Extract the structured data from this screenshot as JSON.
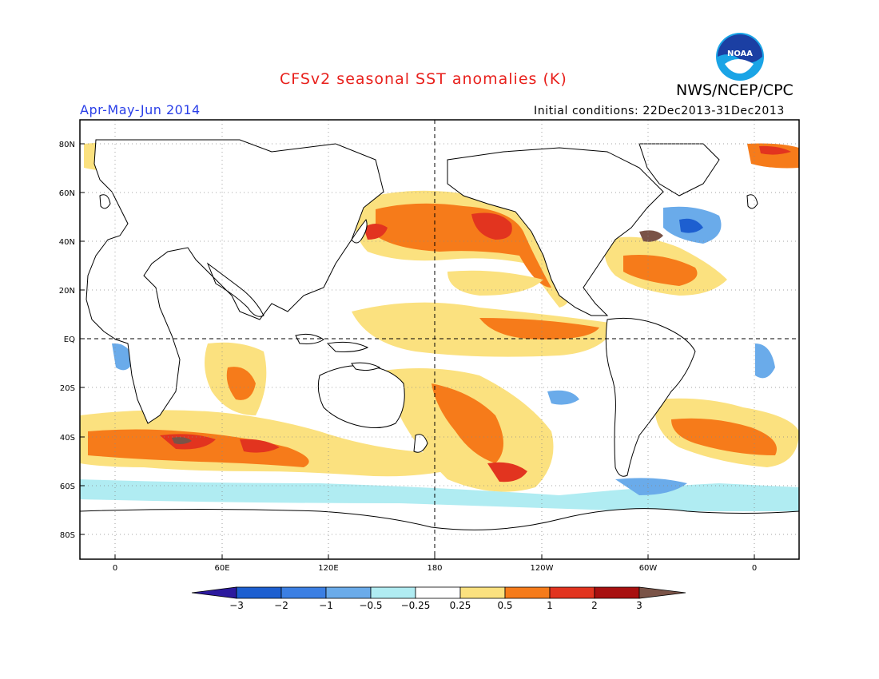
{
  "title": "CFSv2 seasonal SST anomalies (K)",
  "agency": "NWS/NCEP/CPC",
  "logo_text": "NOAA",
  "season": "Apr-May-Jun 2014",
  "initial_conditions": "Initial conditions: 22Dec2013-31Dec2013",
  "colors": {
    "title": "#e8201c",
    "season": "#2a3fe8"
  },
  "map": {
    "lat_labels": [
      "80N",
      "60N",
      "40N",
      "20N",
      "EQ",
      "20S",
      "40S",
      "60S",
      "80S"
    ],
    "lon_labels": [
      "0",
      "60E",
      "120E",
      "180",
      "120W",
      "60W",
      "0"
    ],
    "gridlines": "dotted",
    "reference_lines": [
      "EQ",
      "180"
    ]
  },
  "colorbar": {
    "labels": [
      "-3",
      "-2",
      "-1",
      "-0.5",
      "-0.25",
      "0.25",
      "0.5",
      "1",
      "2",
      "3"
    ],
    "colors": [
      "#2c1a9e",
      "#1d5fd0",
      "#3b7fe3",
      "#6aabea",
      "#b0ecf2",
      "#ffffff",
      "#fbe17f",
      "#f67b1a",
      "#e2341f",
      "#a81010",
      "#7a5347"
    ]
  }
}
